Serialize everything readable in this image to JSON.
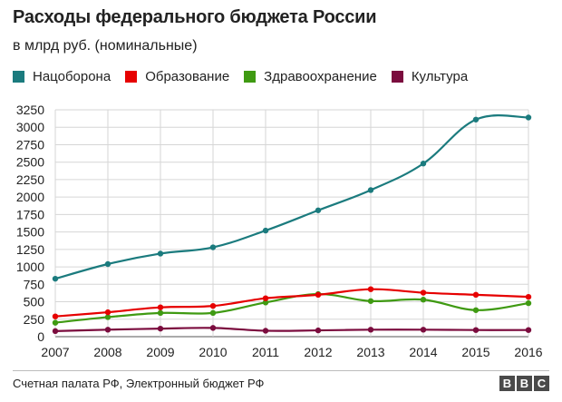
{
  "title": "Расходы федерального бюджета России",
  "subtitle": "в млрд руб. (номинальные)",
  "source": "Счетная палата РФ, Электронный бюджет РФ",
  "logo": [
    "B",
    "B",
    "C"
  ],
  "chart_data": {
    "type": "line",
    "x": [
      "2007",
      "2008",
      "2009",
      "2010",
      "2011",
      "2012",
      "2013",
      "2014",
      "2015",
      "2016"
    ],
    "ylim": [
      0,
      3250
    ],
    "yticks": [
      0,
      250,
      500,
      750,
      1000,
      1250,
      1500,
      1750,
      2000,
      2250,
      2500,
      2750,
      3000,
      3250
    ],
    "grid": true,
    "legend_position": "top-left",
    "series": [
      {
        "name": "Нацоборона",
        "color": "#1b7b7e",
        "values": [
          830,
          1040,
          1190,
          1280,
          1520,
          1810,
          2100,
          2480,
          3110,
          3140
        ]
      },
      {
        "name": "Образование",
        "color": "#e60000",
        "values": [
          290,
          350,
          420,
          440,
          550,
          600,
          680,
          630,
          600,
          570
        ]
      },
      {
        "name": "Здравоохранение",
        "color": "#3f9a12",
        "values": [
          200,
          280,
          340,
          340,
          490,
          610,
          510,
          530,
          380,
          480
        ]
      },
      {
        "name": "Культура",
        "color": "#7b0c3e",
        "values": [
          80,
          100,
          115,
          125,
          85,
          90,
          100,
          100,
          95,
          95
        ]
      }
    ]
  }
}
